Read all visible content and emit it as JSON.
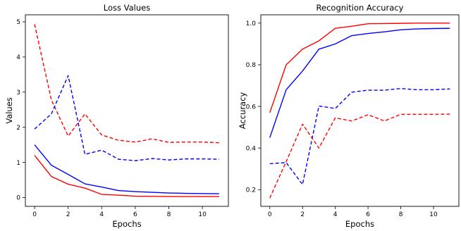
{
  "chart_data": [
    {
      "type": "line",
      "title": "Loss Values",
      "xlabel": "Epochs",
      "ylabel": "Values",
      "xlim": [
        -0.55,
        11.55
      ],
      "ylim": [
        -0.25,
        5.2
      ],
      "xticks": [
        0,
        2,
        4,
        6,
        8,
        10
      ],
      "yticks": [
        0,
        1,
        2,
        3,
        4,
        5
      ],
      "x": [
        0,
        1,
        2,
        3,
        4,
        5,
        6,
        7,
        8,
        9,
        10,
        11
      ],
      "series": [
        {
          "color": "#ff0000",
          "style": "solid",
          "values": [
            1.2,
            0.6,
            0.38,
            0.27,
            0.09,
            0.07,
            0.04,
            0.035,
            0.03,
            0.03,
            0.03,
            0.03
          ]
        },
        {
          "color": "#0000ff",
          "style": "solid",
          "values": [
            1.5,
            0.92,
            0.66,
            0.39,
            0.3,
            0.2,
            0.17,
            0.15,
            0.13,
            0.12,
            0.115,
            0.11
          ]
        },
        {
          "color": "#ff0000",
          "style": "dashed",
          "values": [
            4.93,
            2.78,
            1.75,
            2.38,
            1.78,
            1.63,
            1.58,
            1.67,
            1.57,
            1.58,
            1.58,
            1.56
          ]
        },
        {
          "color": "#0000ff",
          "style": "dashed",
          "values": [
            1.95,
            2.38,
            3.47,
            1.23,
            1.35,
            1.09,
            1.05,
            1.11,
            1.07,
            1.1,
            1.1,
            1.09
          ]
        }
      ],
      "grid": false
    },
    {
      "type": "line",
      "title": "Recognition Accuracy",
      "xlabel": "Epochs",
      "ylabel": "Accuracy",
      "xlim": [
        -0.55,
        11.55
      ],
      "ylim": [
        0.12,
        1.04
      ],
      "xticks": [
        0,
        2,
        4,
        6,
        8,
        10
      ],
      "yticks": [
        0.2,
        0.4,
        0.6,
        0.8,
        1.0
      ],
      "ytick_labels": [
        "0.2",
        "0.4",
        "0.6",
        "0.8",
        "1.0"
      ],
      "x": [
        0,
        1,
        2,
        3,
        4,
        5,
        6,
        7,
        8,
        9,
        10,
        11
      ],
      "series": [
        {
          "color": "#ff0000",
          "style": "solid",
          "values": [
            0.57,
            0.8,
            0.875,
            0.915,
            0.975,
            0.985,
            0.997,
            0.998,
            0.999,
            1.0,
            1.0,
            1.0
          ]
        },
        {
          "color": "#0000ff",
          "style": "solid",
          "values": [
            0.45,
            0.68,
            0.77,
            0.875,
            0.9,
            0.94,
            0.95,
            0.958,
            0.968,
            0.972,
            0.974,
            0.975
          ]
        },
        {
          "color": "#0000ff",
          "style": "dashed",
          "values": [
            0.325,
            0.33,
            0.225,
            0.602,
            0.59,
            0.668,
            0.678,
            0.678,
            0.686,
            0.68,
            0.68,
            0.684
          ]
        },
        {
          "color": "#ff0000",
          "style": "dashed",
          "values": [
            0.16,
            0.335,
            0.515,
            0.4,
            0.545,
            0.53,
            0.56,
            0.53,
            0.562,
            0.562,
            0.562,
            0.563
          ]
        }
      ],
      "grid": false
    }
  ]
}
